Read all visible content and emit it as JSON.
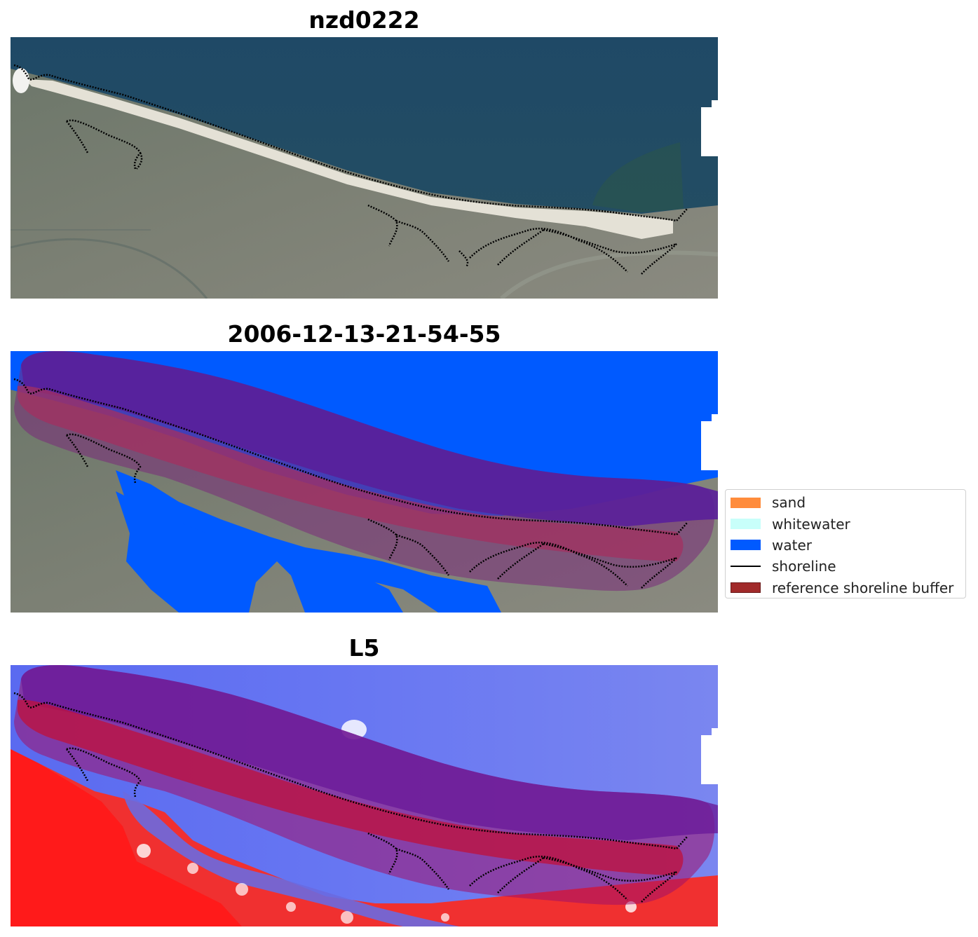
{
  "panels": [
    {
      "title": "nzd0222",
      "kind": "rgb"
    },
    {
      "title": "2006-12-13-21-54-55",
      "kind": "classified"
    },
    {
      "title": "L5",
      "kind": "index"
    }
  ],
  "legend": {
    "placement": "center-right",
    "items": [
      {
        "label": "sand",
        "color": "#ff8c3c",
        "type": "patch"
      },
      {
        "label": "whitewater",
        "color": "#c8fffa",
        "type": "patch"
      },
      {
        "label": "water",
        "color": "#005aff",
        "type": "patch"
      },
      {
        "label": "shoreline",
        "color": "#000000",
        "type": "line"
      },
      {
        "label": "reference shoreline buffer",
        "color": "#a12a2a",
        "type": "patch"
      }
    ]
  }
}
